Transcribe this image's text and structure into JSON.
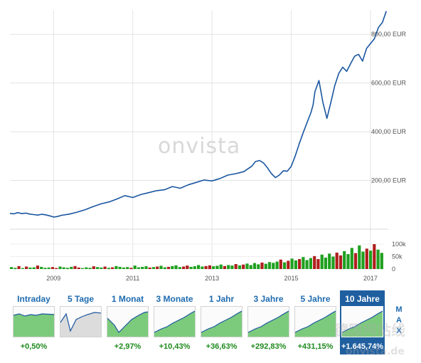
{
  "chart_data": [
    {
      "type": "line",
      "title": "",
      "xlabel": "",
      "ylabel": "",
      "xlim": [
        2007.9,
        2017.45
      ],
      "ylim": [
        0,
        900
      ],
      "y_ticks": [
        200,
        400,
        600,
        800
      ],
      "y_tick_labels": [
        "200,00 EUR",
        "400,00 EUR",
        "600,00 EUR",
        "800,00 EUR"
      ],
      "x_ticks": [
        2009,
        2011,
        2013,
        2015,
        2017
      ],
      "x_tick_labels": [
        "2009",
        "2011",
        "2013",
        "2015",
        "2017"
      ],
      "grid": true,
      "color": "#1a56a0",
      "watermark": "onvista",
      "series": [
        {
          "x": [
            2007.9,
            2008.0,
            2008.1,
            2008.2,
            2008.3,
            2008.4,
            2008.5,
            2008.6,
            2008.7,
            2008.8,
            2008.9,
            2009.0,
            2009.1,
            2009.2,
            2009.4,
            2009.6,
            2009.8,
            2010.0,
            2010.2,
            2010.4,
            2010.6,
            2010.8,
            2011.0,
            2011.2,
            2011.4,
            2011.6,
            2011.8,
            2012.0,
            2012.2,
            2012.4,
            2012.6,
            2012.8,
            2013.0,
            2013.2,
            2013.4,
            2013.6,
            2013.8,
            2014.0,
            2014.1,
            2014.2,
            2014.3,
            2014.4,
            2014.5,
            2014.6,
            2014.7,
            2014.8,
            2014.9,
            2015.0,
            2015.1,
            2015.2,
            2015.3,
            2015.4,
            2015.5,
            2015.55,
            2015.6,
            2015.7,
            2015.8,
            2015.9,
            2016.0,
            2016.1,
            2016.2,
            2016.3,
            2016.4,
            2016.5,
            2016.6,
            2016.7,
            2016.8,
            2016.9,
            2017.0,
            2017.1,
            2017.2,
            2017.3,
            2017.4
          ],
          "y": [
            65,
            63,
            68,
            64,
            66,
            62,
            60,
            58,
            61,
            59,
            55,
            50,
            52,
            57,
            62,
            70,
            80,
            93,
            104,
            112,
            124,
            138,
            130,
            142,
            150,
            158,
            162,
            175,
            168,
            182,
            192,
            202,
            198,
            208,
            222,
            228,
            236,
            258,
            278,
            282,
            272,
            252,
            228,
            212,
            222,
            240,
            238,
            258,
            300,
            350,
            395,
            438,
            480,
            510,
            565,
            610,
            520,
            455,
            520,
            590,
            640,
            665,
            648,
            680,
            710,
            718,
            690,
            742,
            762,
            782,
            828,
            848,
            895
          ]
        }
      ]
    },
    {
      "type": "bar",
      "title": "",
      "xlabel": "",
      "ylabel": "",
      "ylim": [
        0,
        120
      ],
      "y_ticks": [
        0,
        50,
        100
      ],
      "y_tick_labels": [
        "0",
        "50k",
        "100k"
      ],
      "values_k": [
        8,
        5,
        12,
        4,
        10,
        6,
        7,
        14,
        9,
        5,
        6,
        8,
        4,
        10,
        7,
        5,
        9,
        12,
        6,
        4,
        7,
        5,
        11,
        8,
        6,
        10,
        5,
        7,
        12,
        9,
        6,
        8,
        5,
        14,
        7,
        9,
        11,
        6,
        8,
        10,
        13,
        7,
        9,
        12,
        15,
        8,
        10,
        14,
        9,
        11,
        16,
        10,
        12,
        15,
        11,
        13,
        18,
        12,
        16,
        14,
        20,
        15,
        18,
        22,
        16,
        24,
        19,
        26,
        21,
        28,
        25,
        30,
        38,
        27,
        33,
        42,
        35,
        40,
        48,
        36,
        44,
        52,
        40,
        58,
        46,
        62,
        50,
        66,
        55,
        72,
        60,
        85,
        64,
        95,
        70,
        82,
        74,
        100,
        78,
        65
      ],
      "colors": [
        "green",
        "red"
      ]
    },
    {
      "type": "table",
      "tabs": [
        {
          "label": "Intraday",
          "change": "+0,50%",
          "active": false,
          "fill": "green",
          "trend": "flat"
        },
        {
          "label": "5 Tage",
          "change": "",
          "active": false,
          "fill": "gray",
          "trend": "zigzag"
        },
        {
          "label": "1 Monat",
          "change": "+2,97%",
          "active": false,
          "fill": "green",
          "trend": "dip-rise"
        },
        {
          "label": "3 Monate",
          "change": "+10,43%",
          "active": false,
          "fill": "green",
          "trend": "rise"
        },
        {
          "label": "1 Jahr",
          "change": "+36,63%",
          "active": false,
          "fill": "green",
          "trend": "rise"
        },
        {
          "label": "3 Jahre",
          "change": "+292,83%",
          "active": false,
          "fill": "green",
          "trend": "rise"
        },
        {
          "label": "5 Jahre",
          "change": "+431,15%",
          "active": false,
          "fill": "green",
          "trend": "rise"
        },
        {
          "label": "10 Jahre",
          "change": "+1.645,74%",
          "active": true,
          "fill": "green",
          "trend": "rise"
        }
      ],
      "range_letters": [
        "M",
        "A",
        "X"
      ]
    }
  ],
  "watermark_overlay": {
    "text": "德国网站线",
    "domain": "onvista.de"
  }
}
